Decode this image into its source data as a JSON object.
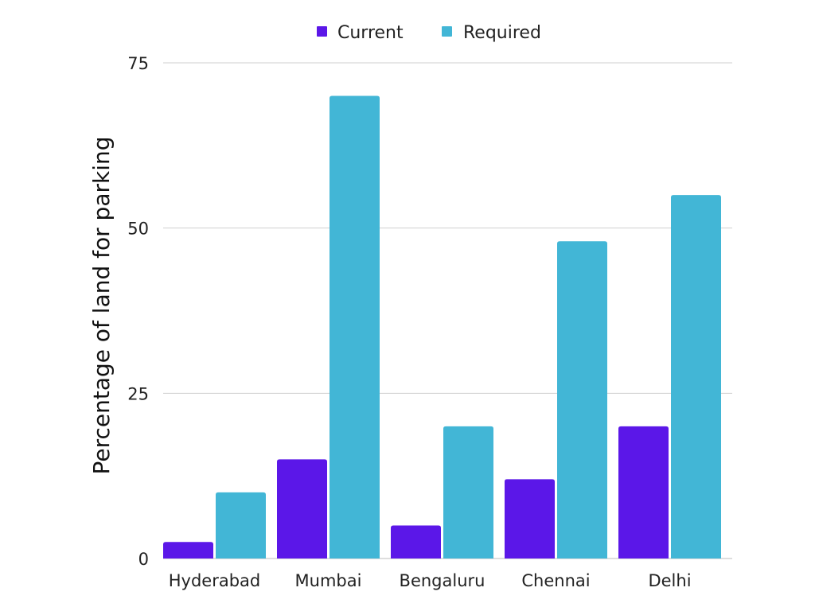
{
  "chart_data": {
    "type": "bar",
    "title": "",
    "xlabel": "",
    "ylabel": "Percentage of land for parking",
    "categories": [
      "Hyderabad",
      "Mumbai",
      "Bengaluru",
      "Chennai",
      "Delhi"
    ],
    "series": [
      {
        "name": "Current",
        "color": "#5b17e8",
        "values": [
          2.5,
          15,
          5,
          12,
          20
        ]
      },
      {
        "name": "Required",
        "color": "#42b6d6",
        "values": [
          10,
          70,
          20,
          48,
          55
        ]
      }
    ],
    "ylim": [
      0,
      75
    ],
    "yticks": [
      0,
      25,
      50,
      75
    ],
    "grid": true,
    "legend_position": "top-center"
  }
}
